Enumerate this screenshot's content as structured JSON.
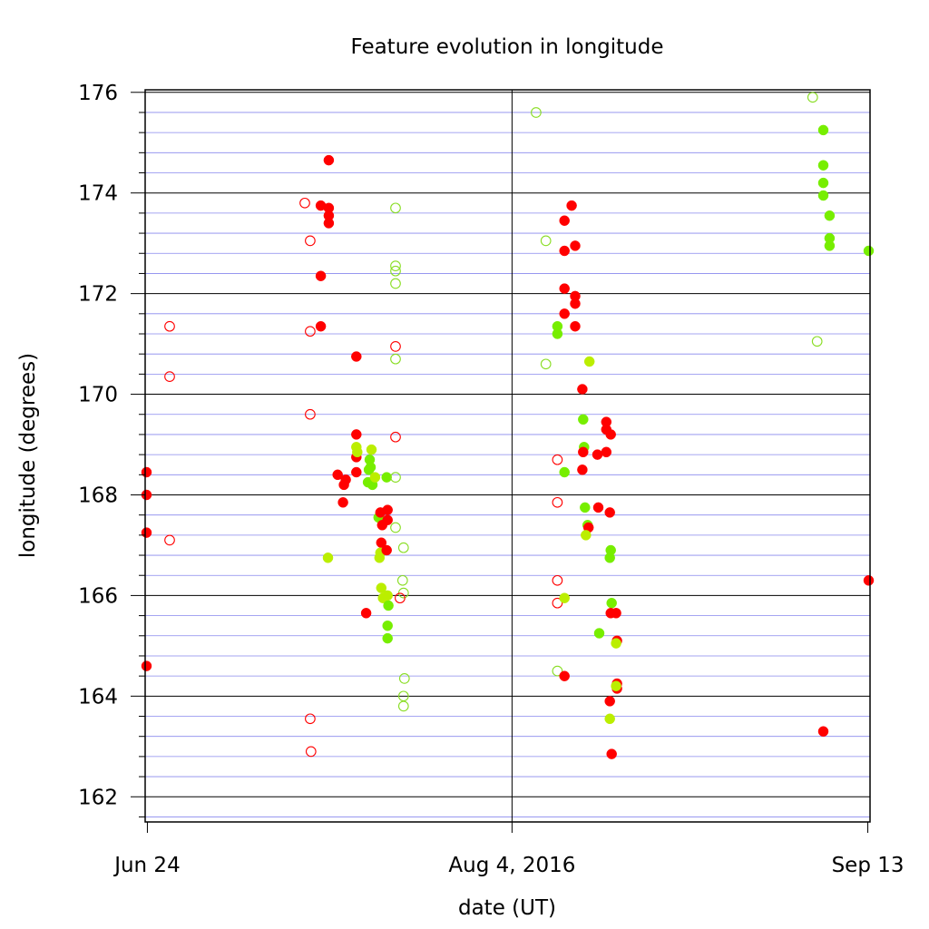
{
  "chart_data": {
    "type": "scatter",
    "title": "Feature evolution in longitude",
    "xlabel": "date (UT)",
    "ylabel": "longitude (degrees)",
    "x_ticks": [
      {
        "date": "2016-06-24",
        "label": "Jun 24"
      },
      {
        "date": "2016-08-04",
        "label": "Aug 4, 2016"
      },
      {
        "date": "2016-09-13",
        "label": "Sep 13"
      }
    ],
    "xlim": [
      "2016-06-23T18:00",
      "2016-09-13T06:00"
    ],
    "y_ticks": [
      162,
      164,
      166,
      168,
      170,
      172,
      174,
      176
    ],
    "ylim": [
      161.5,
      176.05
    ],
    "grid": "black lines at labelled y ticks, blue lines every 0.4 degrees, black vertical line at Aug 4",
    "colors": {
      "red": "#ff0000",
      "green": "#77ee00",
      "yellowgreen": "#bbee00",
      "lightgreen": "#88dd22",
      "grid_major": "#000000",
      "grid_minor": "#8888ee"
    },
    "points": [
      {
        "date": "2016-06-23.9",
        "lon": 168.45,
        "color": "red",
        "filled": true
      },
      {
        "date": "2016-06-23.9",
        "lon": 168.0,
        "color": "red",
        "filled": true
      },
      {
        "date": "2016-06-23.9",
        "lon": 167.25,
        "color": "red",
        "filled": true
      },
      {
        "date": "2016-06-23.9",
        "lon": 164.6,
        "color": "red",
        "filled": true
      },
      {
        "date": "2016-06-26.5",
        "lon": 171.35,
        "color": "red",
        "filled": false
      },
      {
        "date": "2016-06-26.5",
        "lon": 170.35,
        "color": "red",
        "filled": false
      },
      {
        "date": "2016-06-26.5",
        "lon": 167.1,
        "color": "red",
        "filled": false
      },
      {
        "date": "2016-07-11.7",
        "lon": 173.8,
        "color": "red",
        "filled": false
      },
      {
        "date": "2016-07-12.3",
        "lon": 173.05,
        "color": "red",
        "filled": false
      },
      {
        "date": "2016-07-12.3",
        "lon": 171.25,
        "color": "red",
        "filled": false
      },
      {
        "date": "2016-07-12.3",
        "lon": 169.6,
        "color": "red",
        "filled": false
      },
      {
        "date": "2016-07-12.3",
        "lon": 163.55,
        "color": "red",
        "filled": false
      },
      {
        "date": "2016-07-12.4",
        "lon": 162.9,
        "color": "red",
        "filled": false
      },
      {
        "date": "2016-07-13.5",
        "lon": 173.75,
        "color": "red",
        "filled": true
      },
      {
        "date": "2016-07-13.5",
        "lon": 172.35,
        "color": "red",
        "filled": true
      },
      {
        "date": "2016-07-13.5",
        "lon": 171.35,
        "color": "red",
        "filled": true
      },
      {
        "date": "2016-07-14.4",
        "lon": 174.65,
        "color": "red",
        "filled": true
      },
      {
        "date": "2016-07-14.4",
        "lon": 173.7,
        "color": "red",
        "filled": true
      },
      {
        "date": "2016-07-14.4",
        "lon": 173.55,
        "color": "red",
        "filled": true
      },
      {
        "date": "2016-07-14.4",
        "lon": 173.4,
        "color": "red",
        "filled": true
      },
      {
        "date": "2016-07-14.3",
        "lon": 166.75,
        "color": "yellowgreen",
        "filled": true
      },
      {
        "date": "2016-07-15.4",
        "lon": 168.4,
        "color": "red",
        "filled": true
      },
      {
        "date": "2016-07-16.1",
        "lon": 168.2,
        "color": "red",
        "filled": true
      },
      {
        "date": "2016-07-16.3",
        "lon": 168.3,
        "color": "red",
        "filled": true
      },
      {
        "date": "2016-07-16.0",
        "lon": 167.85,
        "color": "red",
        "filled": true
      },
      {
        "date": "2016-07-17.5",
        "lon": 170.75,
        "color": "red",
        "filled": true
      },
      {
        "date": "2016-07-17.5",
        "lon": 169.2,
        "color": "red",
        "filled": true
      },
      {
        "date": "2016-07-17.5",
        "lon": 168.75,
        "color": "red",
        "filled": true
      },
      {
        "date": "2016-07-17.5",
        "lon": 168.45,
        "color": "red",
        "filled": true
      },
      {
        "date": "2016-07-17.5",
        "lon": 168.95,
        "color": "yellowgreen",
        "filled": true
      },
      {
        "date": "2016-07-17.6",
        "lon": 168.85,
        "color": "yellowgreen",
        "filled": true
      },
      {
        "date": "2016-07-18.6",
        "lon": 165.65,
        "color": "red",
        "filled": true
      },
      {
        "date": "2016-07-18.8",
        "lon": 168.25,
        "color": "green",
        "filled": true
      },
      {
        "date": "2016-07-18.9",
        "lon": 168.5,
        "color": "green",
        "filled": true
      },
      {
        "date": "2016-07-19.0",
        "lon": 168.7,
        "color": "green",
        "filled": true
      },
      {
        "date": "2016-07-19.1",
        "lon": 168.55,
        "color": "green",
        "filled": true
      },
      {
        "date": "2016-07-19.2",
        "lon": 168.9,
        "color": "yellowgreen",
        "filled": true
      },
      {
        "date": "2016-07-19.3",
        "lon": 168.2,
        "color": "green",
        "filled": true
      },
      {
        "date": "2016-07-19.6",
        "lon": 168.35,
        "color": "yellowgreen",
        "filled": true
      },
      {
        "date": "2016-07-20.0",
        "lon": 167.55,
        "color": "green",
        "filled": true
      },
      {
        "date": "2016-07-20.2",
        "lon": 167.65,
        "color": "red",
        "filled": true
      },
      {
        "date": "2016-07-20.4",
        "lon": 167.4,
        "color": "red",
        "filled": true
      },
      {
        "date": "2016-07-20.3",
        "lon": 167.05,
        "color": "red",
        "filled": true
      },
      {
        "date": "2016-07-20.1",
        "lon": 166.75,
        "color": "yellowgreen",
        "filled": true
      },
      {
        "date": "2016-07-20.2",
        "lon": 166.85,
        "color": "yellowgreen",
        "filled": true
      },
      {
        "date": "2016-07-20.3",
        "lon": 166.15,
        "color": "yellowgreen",
        "filled": true
      },
      {
        "date": "2016-07-20.5",
        "lon": 165.95,
        "color": "yellowgreen",
        "filled": true
      },
      {
        "date": "2016-07-20.9",
        "lon": 168.35,
        "color": "green",
        "filled": true
      },
      {
        "date": "2016-07-21.0",
        "lon": 167.7,
        "color": "red",
        "filled": true
      },
      {
        "date": "2016-07-21.0",
        "lon": 167.5,
        "color": "red",
        "filled": true
      },
      {
        "date": "2016-07-20.9",
        "lon": 166.9,
        "color": "red",
        "filled": true
      },
      {
        "date": "2016-07-21.0",
        "lon": 166.0,
        "color": "yellowgreen",
        "filled": true
      },
      {
        "date": "2016-07-21.1",
        "lon": 165.8,
        "color": "green",
        "filled": true
      },
      {
        "date": "2016-07-21.0",
        "lon": 165.4,
        "color": "green",
        "filled": true
      },
      {
        "date": "2016-07-21.0",
        "lon": 165.15,
        "color": "green",
        "filled": true
      },
      {
        "date": "2016-07-21.9",
        "lon": 173.7,
        "color": "lightgreen",
        "filled": false
      },
      {
        "date": "2016-07-21.9",
        "lon": 172.55,
        "color": "lightgreen",
        "filled": false
      },
      {
        "date": "2016-07-21.9",
        "lon": 172.45,
        "color": "lightgreen",
        "filled": false
      },
      {
        "date": "2016-07-21.9",
        "lon": 172.2,
        "color": "lightgreen",
        "filled": false
      },
      {
        "date": "2016-07-21.9",
        "lon": 170.95,
        "color": "red",
        "filled": false
      },
      {
        "date": "2016-07-21.9",
        "lon": 170.7,
        "color": "lightgreen",
        "filled": false
      },
      {
        "date": "2016-07-21.9",
        "lon": 169.15,
        "color": "red",
        "filled": false
      },
      {
        "date": "2016-07-21.9",
        "lon": 168.35,
        "color": "lightgreen",
        "filled": false
      },
      {
        "date": "2016-07-21.9",
        "lon": 167.35,
        "color": "lightgreen",
        "filled": false
      },
      {
        "date": "2016-07-22.8",
        "lon": 166.95,
        "color": "lightgreen",
        "filled": false
      },
      {
        "date": "2016-07-22.7",
        "lon": 166.3,
        "color": "lightgreen",
        "filled": false
      },
      {
        "date": "2016-07-22.8",
        "lon": 166.05,
        "color": "lightgreen",
        "filled": false
      },
      {
        "date": "2016-07-22.4",
        "lon": 165.95,
        "color": "red",
        "filled": false
      },
      {
        "date": "2016-07-22.9",
        "lon": 164.35,
        "color": "lightgreen",
        "filled": false
      },
      {
        "date": "2016-07-22.8",
        "lon": 164.0,
        "color": "lightgreen",
        "filled": false
      },
      {
        "date": "2016-07-22.8",
        "lon": 163.8,
        "color": "lightgreen",
        "filled": false
      },
      {
        "date": "2016-08-06.7",
        "lon": 175.6,
        "color": "lightgreen",
        "filled": false
      },
      {
        "date": "2016-08-07.8",
        "lon": 173.05,
        "color": "lightgreen",
        "filled": false
      },
      {
        "date": "2016-08-07.8",
        "lon": 170.6,
        "color": "lightgreen",
        "filled": false
      },
      {
        "date": "2016-08-09.1",
        "lon": 171.35,
        "color": "green",
        "filled": true
      },
      {
        "date": "2016-08-09.1",
        "lon": 171.2,
        "color": "green",
        "filled": true
      },
      {
        "date": "2016-08-09.1",
        "lon": 168.7,
        "color": "red",
        "filled": false
      },
      {
        "date": "2016-08-09.1",
        "lon": 167.85,
        "color": "red",
        "filled": false
      },
      {
        "date": "2016-08-09.1",
        "lon": 166.3,
        "color": "red",
        "filled": false
      },
      {
        "date": "2016-08-09.1",
        "lon": 165.85,
        "color": "red",
        "filled": false
      },
      {
        "date": "2016-08-09.1",
        "lon": 164.5,
        "color": "lightgreen",
        "filled": false
      },
      {
        "date": "2016-08-09.9",
        "lon": 173.45,
        "color": "red",
        "filled": true
      },
      {
        "date": "2016-08-09.9",
        "lon": 172.85,
        "color": "red",
        "filled": true
      },
      {
        "date": "2016-08-09.9",
        "lon": 172.1,
        "color": "red",
        "filled": true
      },
      {
        "date": "2016-08-09.9",
        "lon": 171.6,
        "color": "red",
        "filled": true
      },
      {
        "date": "2016-08-09.9",
        "lon": 168.45,
        "color": "green",
        "filled": true
      },
      {
        "date": "2016-08-09.9",
        "lon": 165.95,
        "color": "yellowgreen",
        "filled": true
      },
      {
        "date": "2016-08-09.9",
        "lon": 164.4,
        "color": "red",
        "filled": true
      },
      {
        "date": "2016-08-10.7",
        "lon": 173.75,
        "color": "red",
        "filled": true
      },
      {
        "date": "2016-08-11.1",
        "lon": 172.95,
        "color": "red",
        "filled": true
      },
      {
        "date": "2016-08-11.1",
        "lon": 171.95,
        "color": "red",
        "filled": true
      },
      {
        "date": "2016-08-11.1",
        "lon": 171.8,
        "color": "red",
        "filled": true
      },
      {
        "date": "2016-08-11.1",
        "lon": 171.35,
        "color": "red",
        "filled": true
      },
      {
        "date": "2016-08-11.9",
        "lon": 170.1,
        "color": "red",
        "filled": true
      },
      {
        "date": "2016-08-12.0",
        "lon": 169.5,
        "color": "green",
        "filled": true
      },
      {
        "date": "2016-08-12.1",
        "lon": 168.95,
        "color": "green",
        "filled": true
      },
      {
        "date": "2016-08-12.0",
        "lon": 168.85,
        "color": "red",
        "filled": true
      },
      {
        "date": "2016-08-11.9",
        "lon": 168.5,
        "color": "red",
        "filled": true
      },
      {
        "date": "2016-08-12.2",
        "lon": 167.75,
        "color": "green",
        "filled": true
      },
      {
        "date": "2016-08-12.5",
        "lon": 167.4,
        "color": "green",
        "filled": true
      },
      {
        "date": "2016-08-12.6",
        "lon": 167.35,
        "color": "red",
        "filled": true
      },
      {
        "date": "2016-08-12.3",
        "lon": 167.2,
        "color": "yellowgreen",
        "filled": true
      },
      {
        "date": "2016-08-12.7",
        "lon": 170.65,
        "color": "yellowgreen",
        "filled": true
      },
      {
        "date": "2016-08-13.6",
        "lon": 168.8,
        "color": "red",
        "filled": true
      },
      {
        "date": "2016-08-13.7",
        "lon": 167.75,
        "color": "red",
        "filled": true
      },
      {
        "date": "2016-08-13.8",
        "lon": 165.25,
        "color": "green",
        "filled": true
      },
      {
        "date": "2016-08-14.6",
        "lon": 169.45,
        "color": "red",
        "filled": true
      },
      {
        "date": "2016-08-14.6",
        "lon": 169.3,
        "color": "red",
        "filled": true
      },
      {
        "date": "2016-08-14.6",
        "lon": 168.85,
        "color": "red",
        "filled": true
      },
      {
        "date": "2016-08-15.1",
        "lon": 169.2,
        "color": "red",
        "filled": true
      },
      {
        "date": "2016-08-15.0",
        "lon": 167.65,
        "color": "red",
        "filled": true
      },
      {
        "date": "2016-08-15.1",
        "lon": 166.9,
        "color": "green",
        "filled": true
      },
      {
        "date": "2016-08-15.0",
        "lon": 166.75,
        "color": "green",
        "filled": true
      },
      {
        "date": "2016-08-15.2",
        "lon": 165.85,
        "color": "green",
        "filled": true
      },
      {
        "date": "2016-08-15.1",
        "lon": 165.65,
        "color": "red",
        "filled": true
      },
      {
        "date": "2016-08-15.0",
        "lon": 163.9,
        "color": "red",
        "filled": true
      },
      {
        "date": "2016-08-15.0",
        "lon": 163.55,
        "color": "yellowgreen",
        "filled": true
      },
      {
        "date": "2016-08-15.2",
        "lon": 162.85,
        "color": "red",
        "filled": true
      },
      {
        "date": "2016-08-15.7",
        "lon": 165.65,
        "color": "red",
        "filled": true
      },
      {
        "date": "2016-08-15.8",
        "lon": 165.1,
        "color": "red",
        "filled": true
      },
      {
        "date": "2016-08-15.7",
        "lon": 165.05,
        "color": "yellowgreen",
        "filled": true
      },
      {
        "date": "2016-08-15.8",
        "lon": 164.25,
        "color": "red",
        "filled": true
      },
      {
        "date": "2016-08-15.8",
        "lon": 164.15,
        "color": "red",
        "filled": true
      },
      {
        "date": "2016-08-15.7",
        "lon": 164.2,
        "color": "yellowgreen",
        "filled": true
      },
      {
        "date": "2016-09-06.8",
        "lon": 175.9,
        "color": "lightgreen",
        "filled": false
      },
      {
        "date": "2016-09-07.3",
        "lon": 171.05,
        "color": "lightgreen",
        "filled": false
      },
      {
        "date": "2016-09-08.0",
        "lon": 175.25,
        "color": "green",
        "filled": true
      },
      {
        "date": "2016-09-08.0",
        "lon": 174.55,
        "color": "green",
        "filled": true
      },
      {
        "date": "2016-09-08.0",
        "lon": 174.2,
        "color": "green",
        "filled": true
      },
      {
        "date": "2016-09-08.0",
        "lon": 173.95,
        "color": "green",
        "filled": true
      },
      {
        "date": "2016-09-08.0",
        "lon": 163.3,
        "color": "red",
        "filled": true
      },
      {
        "date": "2016-09-08.7",
        "lon": 173.55,
        "color": "green",
        "filled": true
      },
      {
        "date": "2016-09-08.7",
        "lon": 173.1,
        "color": "green",
        "filled": true
      },
      {
        "date": "2016-09-08.7",
        "lon": 172.95,
        "color": "green",
        "filled": true
      },
      {
        "date": "2016-09-13.1",
        "lon": 172.85,
        "color": "green",
        "filled": true
      },
      {
        "date": "2016-09-13.1",
        "lon": 166.3,
        "color": "red",
        "filled": true
      }
    ]
  }
}
